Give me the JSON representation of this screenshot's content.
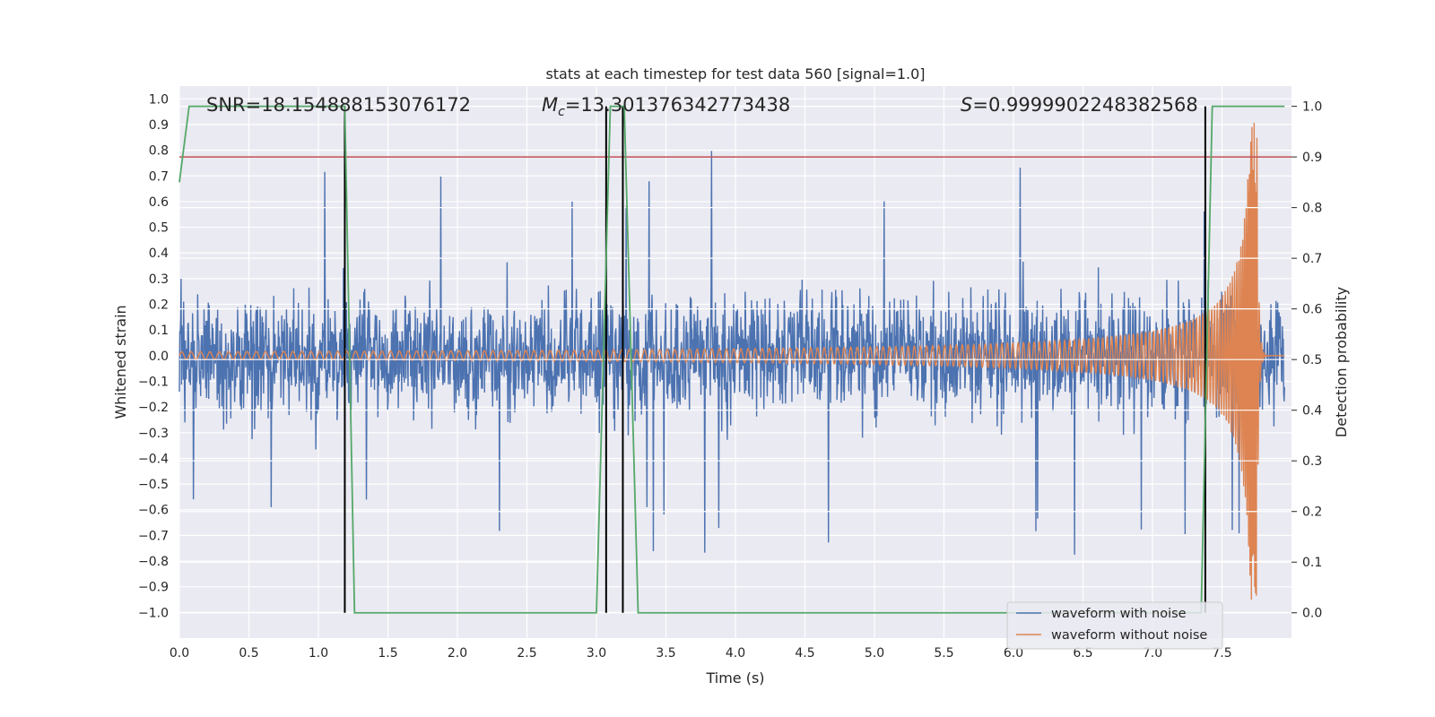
{
  "chart_data": {
    "type": "line",
    "title": "stats at each timestep for test data 560 [signal=1.0]",
    "xlabel": "Time (s)",
    "ylabel_left": "Whitened strain",
    "ylabel_right": "Detection probability",
    "xlim": [
      0.0,
      8.0
    ],
    "ylim_left": [
      -1.1,
      1.05
    ],
    "ylim_right": [
      -0.05,
      1.04
    ],
    "x_ticks": [
      0.0,
      0.5,
      1.0,
      1.5,
      2.0,
      2.5,
      3.0,
      3.5,
      4.0,
      4.5,
      5.0,
      5.5,
      6.0,
      6.5,
      7.0,
      7.5
    ],
    "x_tick_labels": [
      "0.0",
      "0.5",
      "1.0",
      "1.5",
      "2.0",
      "2.5",
      "3.0",
      "3.5",
      "4.0",
      "4.5",
      "5.0",
      "5.5",
      "6.0",
      "6.5",
      "7.0",
      "7.5"
    ],
    "y_left_ticks": [
      1.0,
      0.9,
      0.8,
      0.7,
      0.6,
      0.5,
      0.4,
      0.3,
      0.2,
      0.1,
      0.0,
      -0.1,
      -0.2,
      -0.3,
      -0.4,
      -0.5,
      -0.6,
      -0.7,
      -0.8,
      -0.9,
      -1.0
    ],
    "y_left_tick_labels": [
      "1.0",
      "0.9",
      "0.8",
      "0.7",
      "0.6",
      "0.5",
      "0.4",
      "0.3",
      "0.2",
      "0.1",
      "0.0",
      "−0.1",
      "−0.2",
      "−0.3",
      "−0.4",
      "−0.5",
      "−0.6",
      "−0.7",
      "−0.8",
      "−0.9",
      "−1.0"
    ],
    "y_right_ticks": [
      1.0,
      0.9,
      0.8,
      0.7,
      0.6,
      0.5,
      0.4,
      0.3,
      0.2,
      0.1,
      0.0
    ],
    "y_right_tick_labels": [
      "1.0",
      "0.9",
      "0.8",
      "0.7",
      "0.6",
      "0.5",
      "0.4",
      "0.3",
      "0.2",
      "0.1",
      "0.0"
    ],
    "annotations": {
      "snr": "SNR=18.154888153076172",
      "mc_symbol": "M",
      "mc_subscript": "c",
      "mc_value": "=13.301376342773438",
      "s_symbol": "S",
      "s_value": "=0.9999902248382568"
    },
    "series": [
      {
        "name": "waveform with noise",
        "color": "#4c72b0",
        "axis": "left",
        "description_values": "noise envelope approx ±0.35 with spikes up to 0.88 / down to -0.83"
      },
      {
        "name": "waveform without noise",
        "color": "#dd8452",
        "axis": "left",
        "chirp_merger_time": 7.75,
        "chirp_peak_amplitude": 0.95
      },
      {
        "name": "detection probability",
        "color": "#55a868",
        "axis": "right",
        "x": [
          0.0,
          0.07,
          0.1,
          1.19,
          1.26,
          3.0,
          3.1,
          3.2,
          3.3,
          7.35,
          7.43,
          7.95
        ],
        "y": [
          0.85,
          1.0,
          1.0,
          1.0,
          0.0,
          0.0,
          1.0,
          1.0,
          0.0,
          0.0,
          1.0,
          1.0
        ]
      }
    ],
    "threshold": {
      "value": 0.9,
      "axis": "right",
      "color": "#c44e52"
    },
    "event_lines": {
      "x": [
        1.19,
        3.07,
        3.19,
        7.38
      ],
      "color": "#000000",
      "top_right": 1.0,
      "bottom_right": 0.0
    },
    "legend": {
      "placement": "lower-right",
      "entries": [
        "waveform with noise",
        "waveform without noise"
      ]
    },
    "grid": true
  }
}
